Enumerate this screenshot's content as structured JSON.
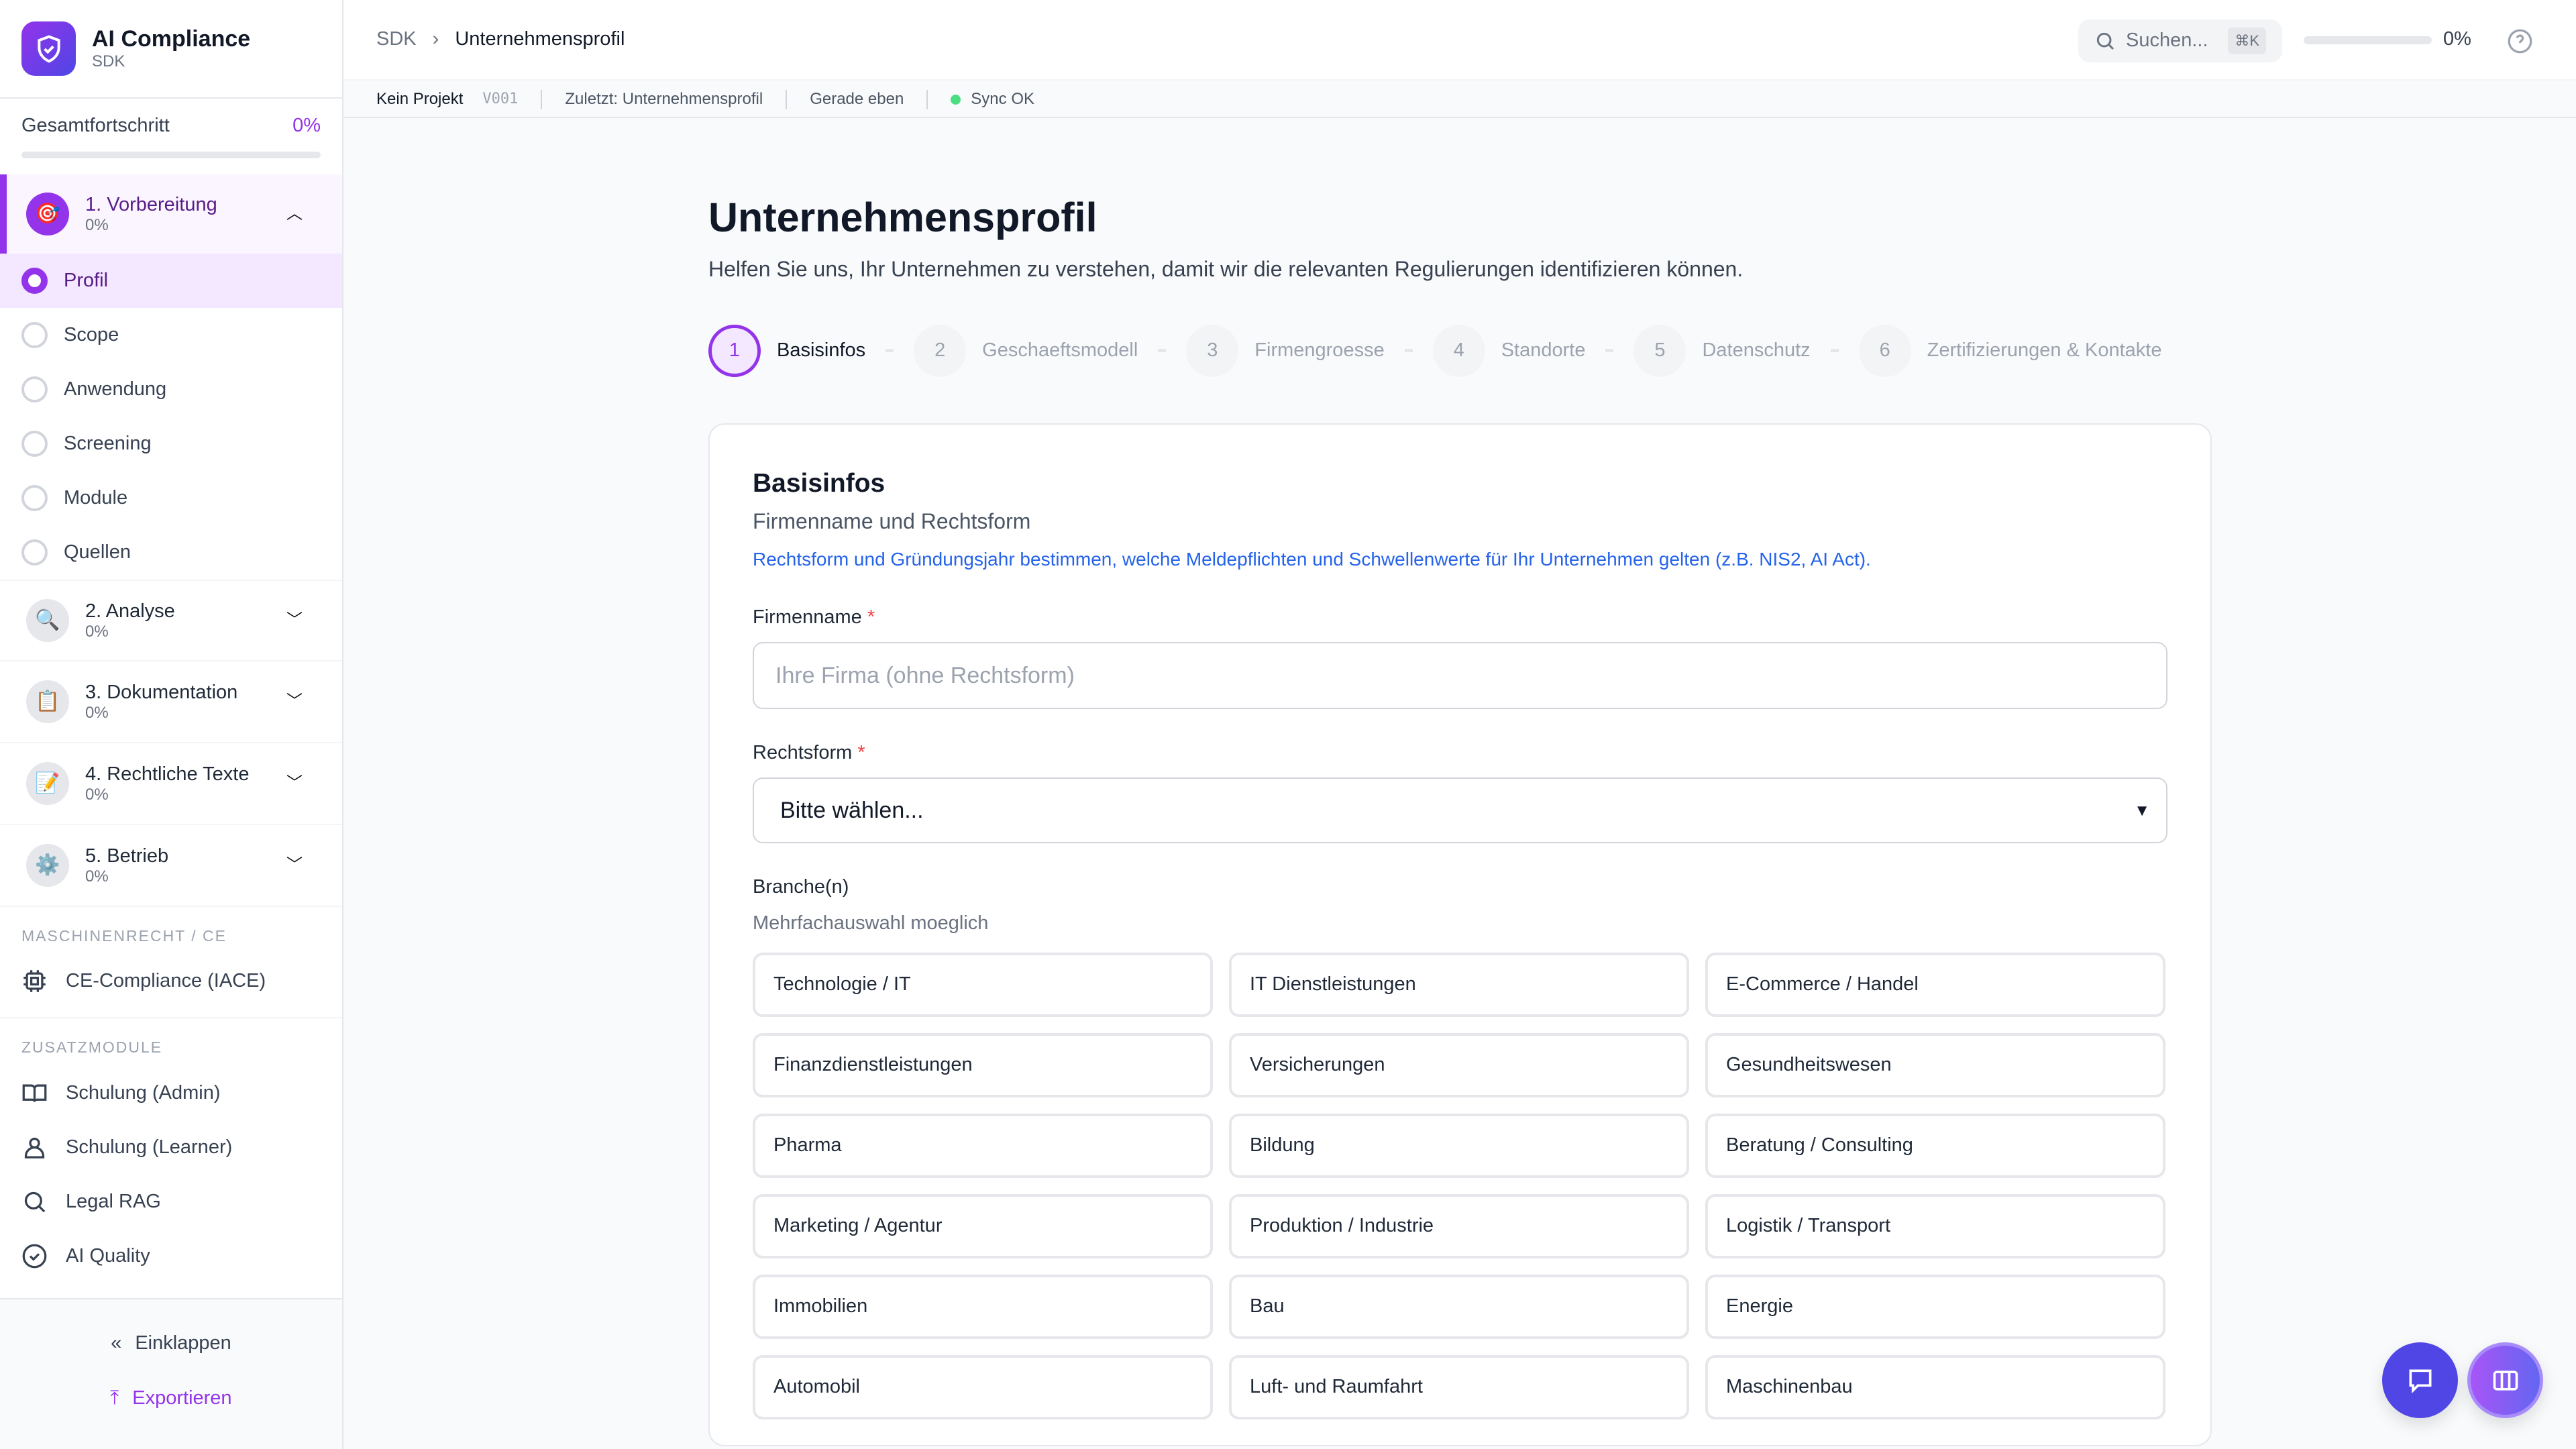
{
  "app": {
    "title": "AI Compliance",
    "subtitle": "SDK"
  },
  "progress": {
    "label": "Gesamtfortschritt",
    "value": "0%",
    "fraction": 0
  },
  "phases": [
    {
      "title": "1. Vorbereitung",
      "pct": "0%",
      "icon": "target-emoji",
      "expanded": true
    },
    {
      "title": "2. Analyse",
      "pct": "0%",
      "icon": "magnifier-emoji"
    },
    {
      "title": "3. Dokumentation",
      "pct": "0%",
      "icon": "clipboard-emoji"
    },
    {
      "title": "4. Rechtliche Texte",
      "pct": "0%",
      "icon": "memo-emoji"
    },
    {
      "title": "5. Betrieb",
      "pct": "0%",
      "icon": "gear-emoji"
    }
  ],
  "substeps": [
    "Profil",
    "Scope",
    "Anwendung",
    "Screening",
    "Module",
    "Quellen"
  ],
  "sections": {
    "machine": "MASCHINENRECHT / CE",
    "extra": "ZUSATZMODULE"
  },
  "machine_items": [
    {
      "label": "CE-Compliance (IACE)",
      "icon": "chip-icon"
    }
  ],
  "extra_items": [
    {
      "label": "Schulung (Admin)",
      "icon": "book-icon"
    },
    {
      "label": "Schulung (Learner)",
      "icon": "user-icon"
    },
    {
      "label": "Legal RAG",
      "icon": "search-icon"
    },
    {
      "label": "AI Quality",
      "icon": "check-circle-icon"
    }
  ],
  "footer": {
    "collapse": "Einklappen",
    "export": "Exportieren"
  },
  "topbar": {
    "crumb_root": "SDK",
    "crumb_current": "Unternehmensprofil",
    "search_placeholder": "Suchen...",
    "shortcut": "⌘K",
    "progress": "0%"
  },
  "status": {
    "project": "Kein Projekt",
    "version": "V001",
    "last": "Zuletzt: Unternehmensprofil",
    "time": "Gerade eben",
    "sync": "Sync OK"
  },
  "page": {
    "title": "Unternehmensprofil",
    "lead": "Helfen Sie uns, Ihr Unternehmen zu verstehen, damit wir die relevanten Regulierungen identifizieren können."
  },
  "steps": [
    {
      "n": "1",
      "label": "Basisinfos"
    },
    {
      "n": "2",
      "label": "Geschaeftsmodell"
    },
    {
      "n": "3",
      "label": "Firmengroesse"
    },
    {
      "n": "4",
      "label": "Standorte"
    },
    {
      "n": "5",
      "label": "Datenschutz"
    },
    {
      "n": "6",
      "label": "Zertifizierungen & Kontakte"
    }
  ],
  "form": {
    "title": "Basisinfos",
    "subtitle": "Firmenname und Rechtsform",
    "info": "Rechtsform und Gründungsjahr bestimmen, welche Meldepflichten und Schwellenwerte für Ihr Unternehmen gelten (z.B. NIS2, AI Act).",
    "name_label": "Firmenname",
    "name_placeholder": "Ihre Firma (ohne Rechtsform)",
    "legal_label": "Rechtsform",
    "legal_value": "Bitte wählen...",
    "branch_label": "Branche(n)",
    "branch_hint": "Mehrfachauswahl moeglich",
    "required_mark": "*",
    "branches": [
      "Technologie / IT",
      "IT Dienstleistungen",
      "E-Commerce / Handel",
      "Finanzdienstleistungen",
      "Versicherungen",
      "Gesundheitswesen",
      "Pharma",
      "Bildung",
      "Beratung / Consulting",
      "Marketing / Agentur",
      "Produktion / Industrie",
      "Logistik / Transport",
      "Immobilien",
      "Bau",
      "Energie",
      "Automobil",
      "Luft- und Raumfahrt",
      "Maschinenbau"
    ]
  },
  "colors": {
    "accent": "#9333ea",
    "link": "#2563eb",
    "fab": "#4f46e5",
    "sync": "#4ade80"
  }
}
